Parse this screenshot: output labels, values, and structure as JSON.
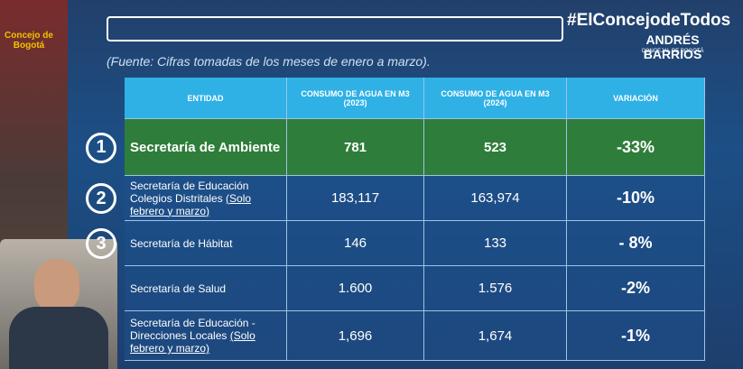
{
  "branding": {
    "council_logo": "Concejo de Bogotá",
    "hashtag": "#ElConcejodeTodos",
    "councillor_name": "ANDRÉS BARRIOS",
    "councillor_role": "CONCEJAL DE BOGOTÁ"
  },
  "source_note": "(Fuente: Cifras tomadas de los meses de enero a marzo).",
  "table": {
    "headers": [
      "ENTIDAD",
      "CONSUMO DE AGUA EN M3 (2023)",
      "CONSUMO DE AGUA EN M3 (2024)",
      "VARIACIÓN"
    ],
    "rows": [
      {
        "number": "1",
        "entity": "Secretaría de Ambiente",
        "value_2023": "781",
        "value_2024": "523",
        "variation": "-33%"
      },
      {
        "number": "2",
        "entity": "Secretaría de Educación Colegios Distritales",
        "entity_note": "(Solo febrero y marzo)",
        "value_2023": "183,117",
        "value_2024": "163,974",
        "variation": "-10%"
      },
      {
        "number": "3",
        "entity": "Secretaría de Hábitat",
        "value_2023": "146",
        "value_2024": "133",
        "variation": "- 8%"
      },
      {
        "entity": "Secretaría de Salud",
        "value_2023": "1.600",
        "value_2024": "1.576",
        "variation": "-2%"
      },
      {
        "entity": "Secretaría de Educación - Direcciones Locales",
        "entity_note": "(Solo febrero y marzo)",
        "value_2023": "1,696",
        "value_2024": "1,674",
        "variation": "-1%"
      }
    ]
  }
}
